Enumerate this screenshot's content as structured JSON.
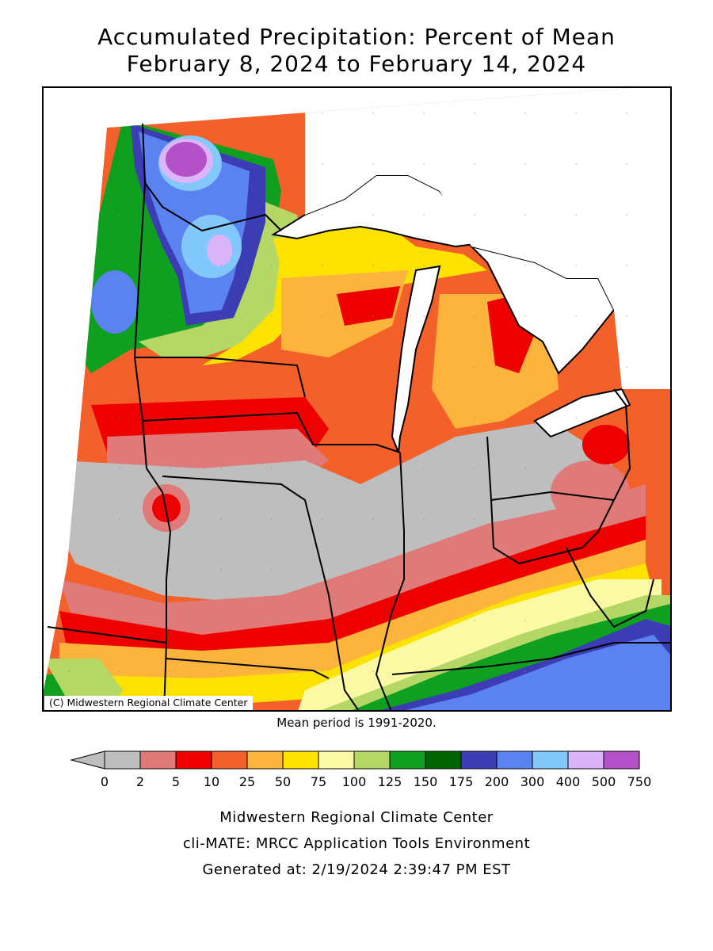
{
  "title_line1": "Accumulated Precipitation: Percent of Mean",
  "title_line2": "February 8, 2024 to February 14, 2024",
  "copyright": "(C) Midwestern Regional Climate Center",
  "mean_period": "Mean period is 1991-2020.",
  "legend": {
    "bins": [
      {
        "color": "#bebebe"
      },
      {
        "color": "#e07a78"
      },
      {
        "color": "#ee0000"
      },
      {
        "color": "#f4602a"
      },
      {
        "color": "#fcb43c"
      },
      {
        "color": "#fce200"
      },
      {
        "color": "#fcf9a4"
      },
      {
        "color": "#b4d766"
      },
      {
        "color": "#10a020"
      },
      {
        "color": "#006400"
      },
      {
        "color": "#3c3cb4"
      },
      {
        "color": "#5a82f0"
      },
      {
        "color": "#82c8fa"
      },
      {
        "color": "#dcb4fa"
      },
      {
        "color": "#b450c8"
      }
    ],
    "labels": [
      "0",
      "2",
      "5",
      "10",
      "25",
      "50",
      "75",
      "100",
      "125",
      "150",
      "175",
      "200",
      "300",
      "400",
      "500",
      "750"
    ]
  },
  "map_regions": [
    {
      "name": "great-lakes-and-canada-blank",
      "color": "#ffffff"
    },
    {
      "name": "mn-wet-zone",
      "color": "#5a82f0"
    },
    {
      "name": "mn-very-wet-core",
      "color": "#b450c8"
    },
    {
      "name": "dry-belt-central",
      "color": "#bebebe"
    },
    {
      "name": "ohio-valley-wet",
      "color": "#5a82f0"
    }
  ],
  "footer": {
    "line1": "Midwestern Regional Climate Center",
    "line2": "cli-MATE: MRCC Application Tools Environment",
    "line3": "Generated at: 2/19/2024 2:39:47 PM EST"
  }
}
